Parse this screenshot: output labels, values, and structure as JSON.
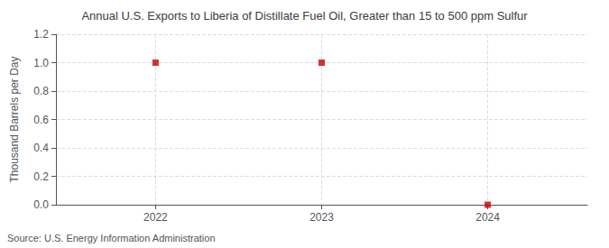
{
  "chart_data": {
    "type": "scatter",
    "title": "Annual U.S. Exports to Liberia of Distillate Fuel Oil, Greater than 15 to 500 ppm Sulfur",
    "ylabel": "Thousand Barrels per Day",
    "source": "Source: U.S. Energy Information Administration",
    "x": [
      2022,
      2023,
      2024
    ],
    "values": [
      1.0,
      1.0,
      0.0
    ],
    "color": "#cc0000",
    "marker": "square",
    "xlim": [
      2021.4,
      2024.6
    ],
    "xticks": [
      2022,
      2023,
      2024
    ],
    "ylim": [
      0.0,
      1.2
    ],
    "yticks": [
      {
        "value": 0.0,
        "label": "0.0"
      },
      0.2,
      0.4,
      0.6,
      0.8,
      {
        "value": 1.0,
        "label": "1.0"
      },
      1.2
    ],
    "grid": true
  }
}
